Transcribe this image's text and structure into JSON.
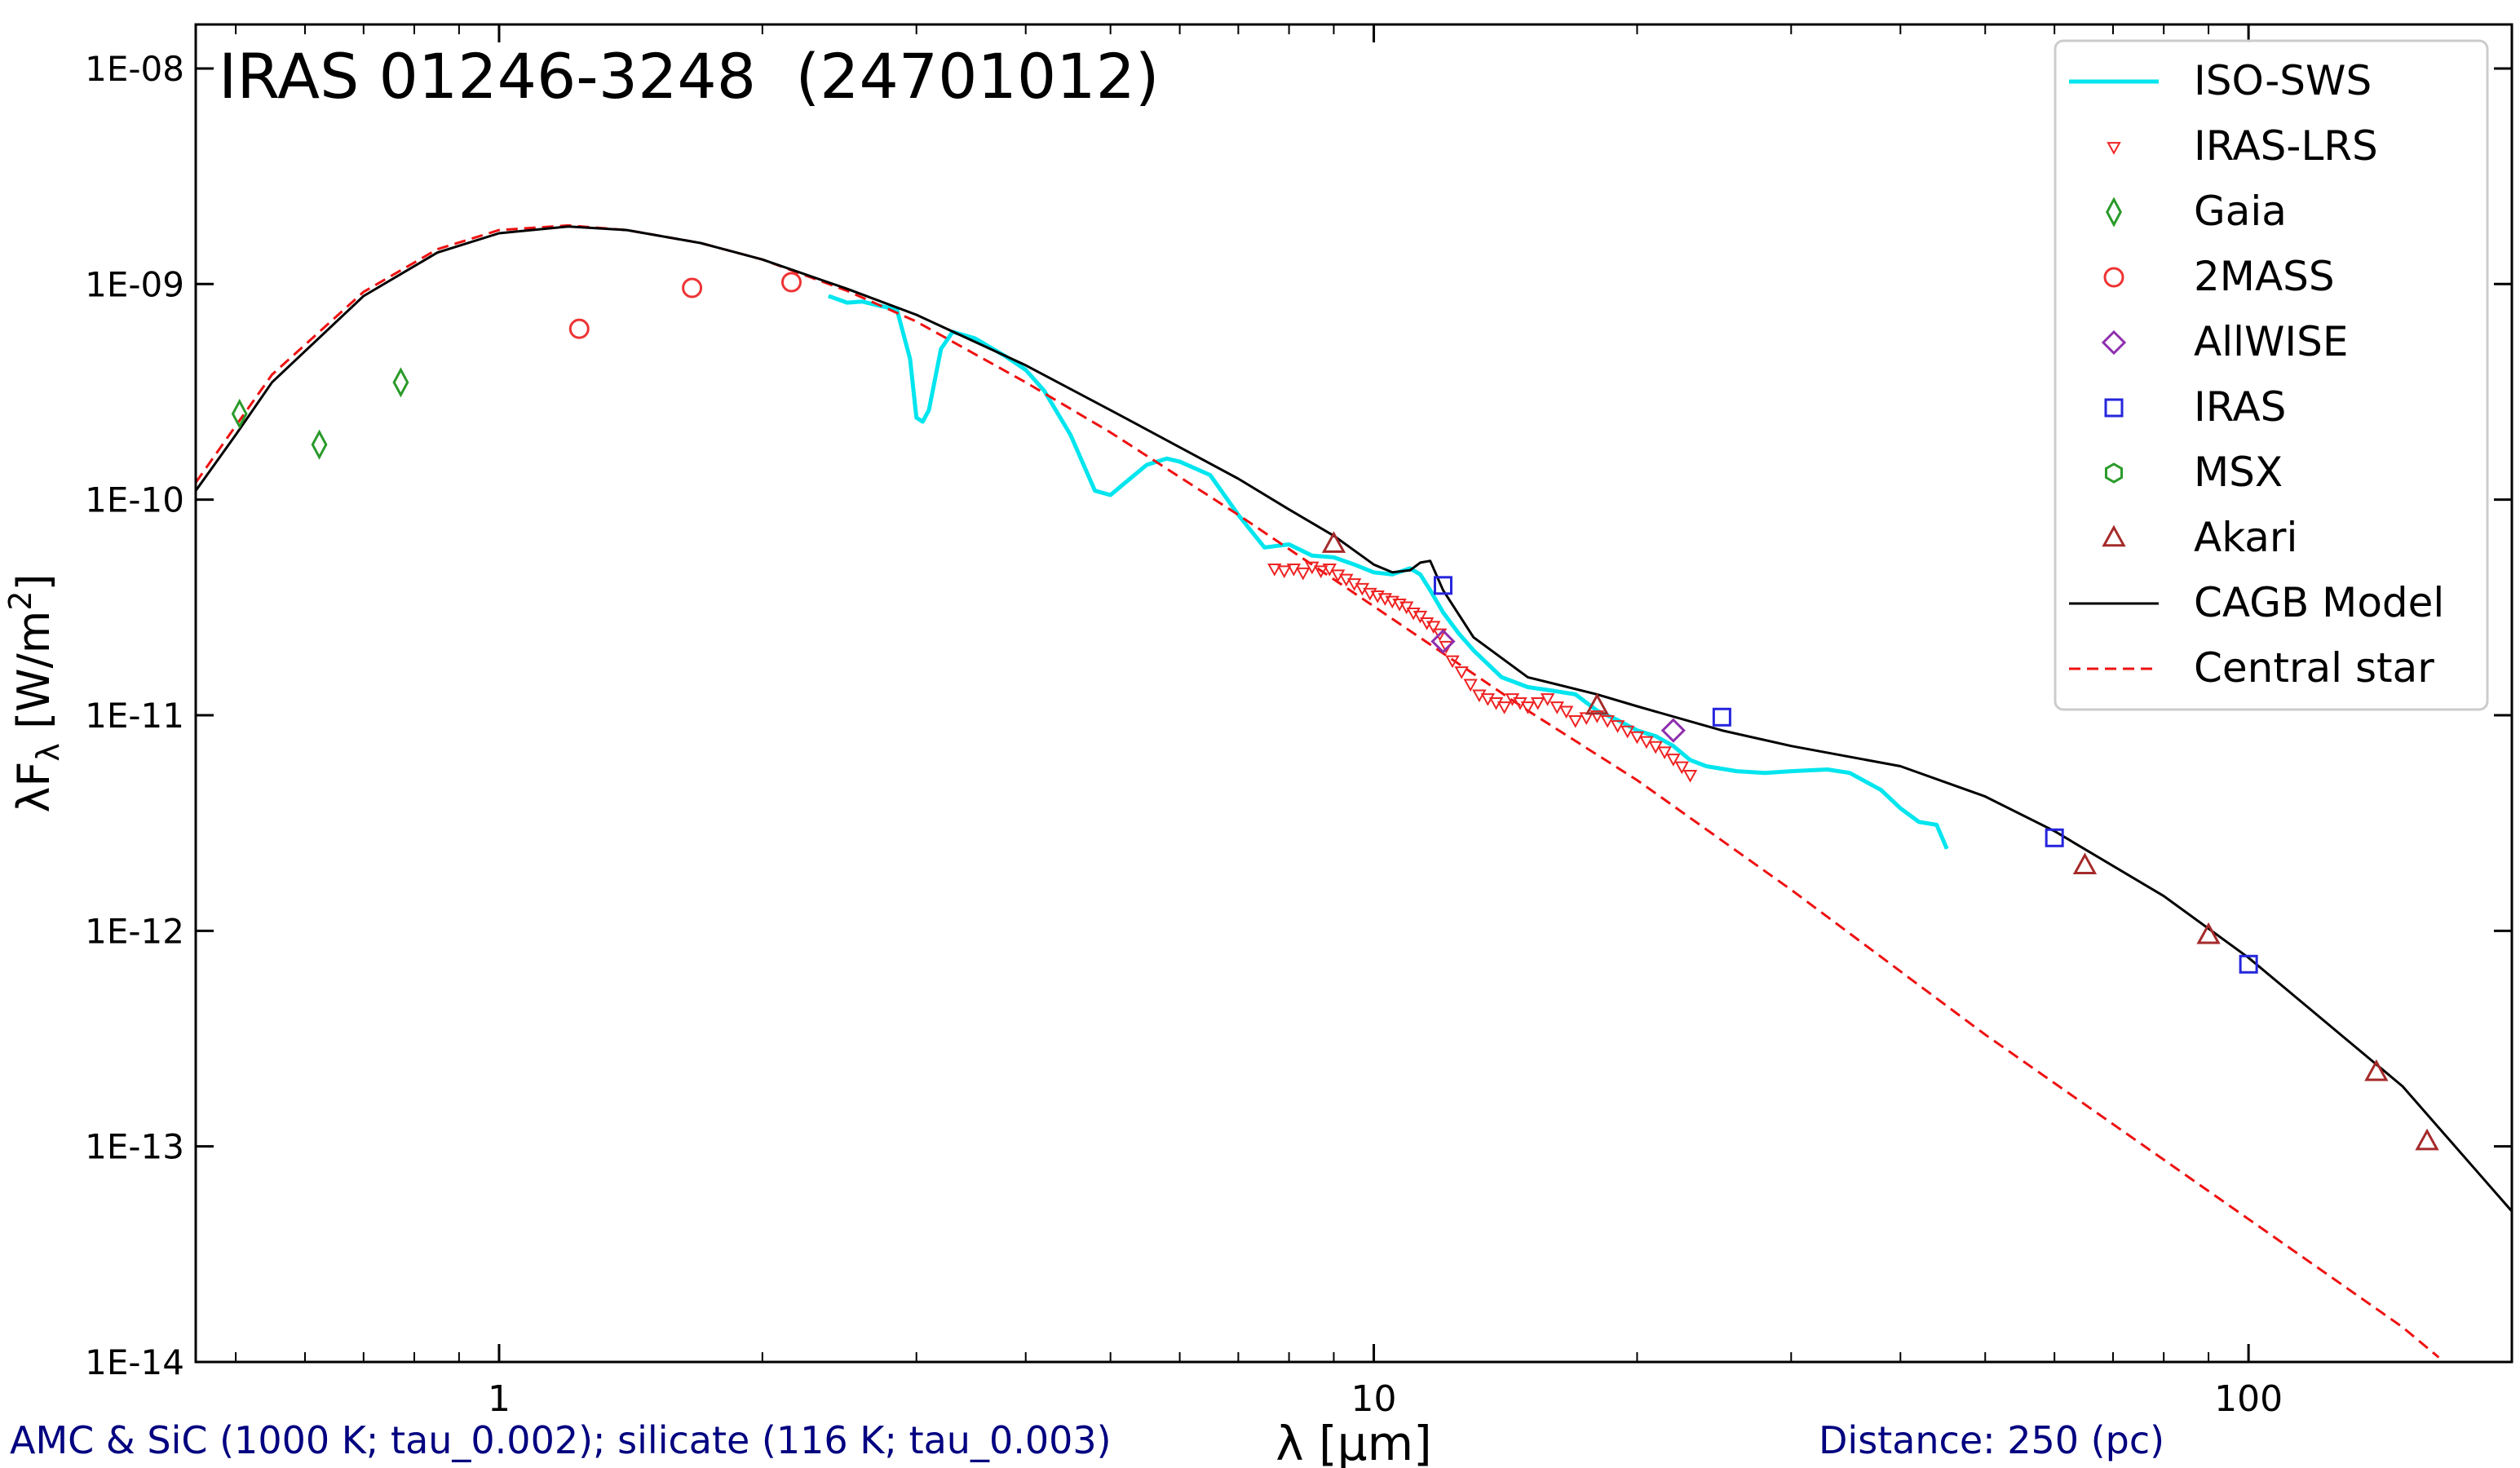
{
  "chart_data": {
    "type": "scatter",
    "title": "IRAS 01246-3248  (24701012)",
    "xlabel": "λ [μm]",
    "ylabel": "λF_λ [W/m^2]",
    "x_scale": "log",
    "y_scale": "log",
    "xlim": [
      0.45,
      200
    ],
    "ylim": [
      1e-14,
      1.6e-08
    ],
    "x_ticks": [
      {
        "value": 1,
        "label": "1"
      },
      {
        "value": 10,
        "label": "10"
      },
      {
        "value": 100,
        "label": "100"
      }
    ],
    "y_ticks": [
      {
        "value": 1e-14,
        "label": "1E-14"
      },
      {
        "value": 1e-13,
        "label": "1E-13"
      },
      {
        "value": 1e-12,
        "label": "1E-12"
      },
      {
        "value": 1e-11,
        "label": "1E-11"
      },
      {
        "value": 1e-10,
        "label": "1E-10"
      },
      {
        "value": 1e-09,
        "label": "1E-09"
      },
      {
        "value": 1e-08,
        "label": "1E-08"
      }
    ],
    "grid": false,
    "legend_position": "top-right",
    "footnote_left": "AMC & SiC (1000 K; tau_0.002); silicate (116 K; tau_0.003)",
    "footnote_right": "Distance: 250 (pc)",
    "colors": {
      "iso_sws": "#00e5ee",
      "iras_lrs": "#ee2222",
      "gaia": "#2a9a2a",
      "twomass": "#ee3333",
      "allwise": "#8e2fae",
      "iras": "#2525dd",
      "msx": "#2a9a2a",
      "akari": "#a52a2a",
      "model": "#000000",
      "central_star": "#ee1111",
      "footnote": "#000080"
    },
    "series": [
      {
        "name": "ISO-SWS",
        "kind": "line",
        "marker": "none",
        "color_key": "iso_sws",
        "x": [
          2.38,
          2.5,
          2.6,
          2.7,
          2.85,
          2.95,
          3.0,
          3.05,
          3.1,
          3.2,
          3.3,
          3.5,
          3.8,
          4.0,
          4.2,
          4.5,
          4.8,
          5.0,
          5.2,
          5.5,
          5.8,
          6.0,
          6.5,
          7.0,
          7.5,
          8.0,
          8.5,
          9.0,
          9.5,
          10.0,
          10.5,
          11.0,
          11.3,
          11.6,
          12.0,
          12.5,
          13.0,
          14.0,
          15.0,
          16.0,
          17.0,
          18.0,
          19.0,
          20.0,
          21.0,
          22.0,
          23.0,
          24.0,
          26.0,
          28.0,
          30.0,
          33.0,
          35.0,
          38.0,
          40.0,
          42.0,
          44.0,
          45.2
        ],
        "y": [
          8.8e-10,
          8.2e-10,
          8.3e-10,
          8e-10,
          7.6e-10,
          4.5e-10,
          2.4e-10,
          2.3e-10,
          2.6e-10,
          5e-10,
          6e-10,
          5.6e-10,
          4.6e-10,
          4e-10,
          3.2e-10,
          2e-10,
          1.1e-10,
          1.05e-10,
          1.2e-10,
          1.45e-10,
          1.55e-10,
          1.5e-10,
          1.3e-10,
          8.5e-11,
          6e-11,
          6.2e-11,
          5.5e-11,
          5.4e-11,
          5e-11,
          4.6e-11,
          4.5e-11,
          4.8e-11,
          4.5e-11,
          3.8e-11,
          3e-11,
          2.4e-11,
          2e-11,
          1.5e-11,
          1.35e-11,
          1.3e-11,
          1.25e-11,
          1.05e-11,
          9.5e-12,
          8.5e-12,
          8e-12,
          7.2e-12,
          6.2e-12,
          5.8e-12,
          5.5e-12,
          5.4e-12,
          5.5e-12,
          5.6e-12,
          5.4e-12,
          4.5e-12,
          3.7e-12,
          3.2e-12,
          3.1e-12,
          2.4e-12
        ]
      },
      {
        "name": "IRAS-LRS",
        "kind": "scatter",
        "marker": "triangle_down",
        "color_key": "iras_lrs",
        "x": [
          7.7,
          7.9,
          8.1,
          8.3,
          8.5,
          8.7,
          8.9,
          9.1,
          9.3,
          9.5,
          9.7,
          9.9,
          10.1,
          10.3,
          10.5,
          10.7,
          10.9,
          11.1,
          11.3,
          11.5,
          11.7,
          11.9,
          12.1,
          12.3,
          12.6,
          12.9,
          13.2,
          13.5,
          13.8,
          14.1,
          14.4,
          14.7,
          15.0,
          15.4,
          15.8,
          16.2,
          16.6,
          17.0,
          17.5,
          18.0,
          18.5,
          19.0,
          19.5,
          20.0,
          20.5,
          21.0,
          21.5,
          22.0,
          22.5,
          23.0
        ],
        "y": [
          4.8e-11,
          4.7e-11,
          4.8e-11,
          4.6e-11,
          4.9e-11,
          4.7e-11,
          4.8e-11,
          4.5e-11,
          4.3e-11,
          4.1e-11,
          3.9e-11,
          3.7e-11,
          3.6e-11,
          3.5e-11,
          3.4e-11,
          3.3e-11,
          3.2e-11,
          3e-11,
          2.9e-11,
          2.7e-11,
          2.6e-11,
          2.4e-11,
          2.1e-11,
          1.8e-11,
          1.6e-11,
          1.4e-11,
          1.25e-11,
          1.2e-11,
          1.15e-11,
          1.1e-11,
          1.2e-11,
          1.15e-11,
          1.1e-11,
          1.15e-11,
          1.2e-11,
          1.1e-11,
          1.05e-11,
          9.5e-12,
          9.8e-12,
          1e-11,
          9.5e-12,
          9e-12,
          8.5e-12,
          8e-12,
          7.6e-12,
          7.2e-12,
          6.8e-12,
          6.3e-12,
          5.8e-12,
          5.3e-12
        ]
      },
      {
        "name": "Gaia",
        "kind": "scatter",
        "marker": "thin_diamond",
        "color_key": "gaia",
        "x": [
          0.505,
          0.623,
          0.772
        ],
        "y": [
          2.5e-10,
          1.8e-10,
          3.5e-10
        ]
      },
      {
        "name": "2MASS",
        "kind": "scatter",
        "marker": "circle",
        "color_key": "twomass",
        "x": [
          1.235,
          1.662,
          2.159
        ],
        "y": [
          6.2e-10,
          9.6e-10,
          1.02e-09
        ]
      },
      {
        "name": "AllWISE",
        "kind": "scatter",
        "marker": "diamond",
        "color_key": "allwise",
        "x": [
          12.0,
          22.0
        ],
        "y": [
          2.2e-11,
          8.5e-12
        ]
      },
      {
        "name": "IRAS",
        "kind": "scatter",
        "marker": "square",
        "color_key": "iras",
        "x": [
          12,
          25,
          60,
          100
        ],
        "y": [
          4e-11,
          9.8e-12,
          2.7e-12,
          7e-13
        ]
      },
      {
        "name": "MSX",
        "kind": "scatter",
        "marker": "hexagon",
        "color_key": "msx",
        "x": [],
        "y": []
      },
      {
        "name": "Akari",
        "kind": "scatter",
        "marker": "triangle_up",
        "color_key": "akari",
        "x": [
          9.0,
          18.0,
          65,
          90,
          140,
          160
        ],
        "y": [
          6.2e-11,
          1.1e-11,
          2e-12,
          9.5e-13,
          2.2e-13,
          1.05e-13
        ]
      },
      {
        "name": "CAGB Model",
        "kind": "line",
        "marker": "none",
        "color_key": "model",
        "x": [
          0.45,
          0.5,
          0.55,
          0.7,
          0.85,
          1.0,
          1.2,
          1.4,
          1.7,
          2.0,
          2.5,
          3.0,
          4.0,
          5.0,
          6.0,
          7.0,
          8.0,
          9.0,
          10.0,
          10.5,
          11.0,
          11.3,
          11.6,
          12.0,
          13.0,
          15.0,
          18.0,
          20.0,
          25.0,
          30.0,
          40.0,
          50.0,
          60.0,
          80.0,
          100.0,
          150.0,
          200.0
        ],
        "y": [
          1.1e-10,
          2e-10,
          3.5e-10,
          8.8e-10,
          1.4e-09,
          1.72e-09,
          1.85e-09,
          1.78e-09,
          1.55e-09,
          1.3e-09,
          9.5e-10,
          7.2e-10,
          4.2e-10,
          2.6e-10,
          1.75e-10,
          1.25e-10,
          9e-11,
          6.8e-11,
          5e-11,
          4.6e-11,
          4.7e-11,
          5.1e-11,
          5.2e-11,
          3.8e-11,
          2.3e-11,
          1.5e-11,
          1.25e-11,
          1.1e-11,
          8.5e-12,
          7.2e-12,
          5.8e-12,
          4.2e-12,
          2.9e-12,
          1.45e-12,
          7.5e-13,
          1.9e-13,
          5e-14
        ]
      },
      {
        "name": "Central star",
        "kind": "line",
        "marker": "none",
        "color_key": "central_star",
        "x": [
          0.45,
          0.5,
          0.55,
          0.7,
          0.85,
          1.0,
          1.2,
          1.4,
          1.7,
          2.0,
          2.5,
          3.0,
          4.0,
          5.0,
          7.0,
          10.0,
          15.0,
          20.0,
          30.0,
          50.0,
          100.0,
          150.0,
          165.0
        ],
        "y": [
          1.2e-10,
          2.2e-10,
          3.8e-10,
          9.2e-10,
          1.45e-09,
          1.78e-09,
          1.87e-09,
          1.78e-09,
          1.55e-09,
          1.3e-09,
          9.3e-10,
          6.7e-10,
          3.5e-10,
          2.05e-10,
          8.5e-11,
          3.2e-11,
          1.05e-11,
          5e-12,
          1.55e-12,
          3.3e-13,
          4.6e-14,
          1.45e-14,
          1.05e-14
        ]
      }
    ]
  }
}
